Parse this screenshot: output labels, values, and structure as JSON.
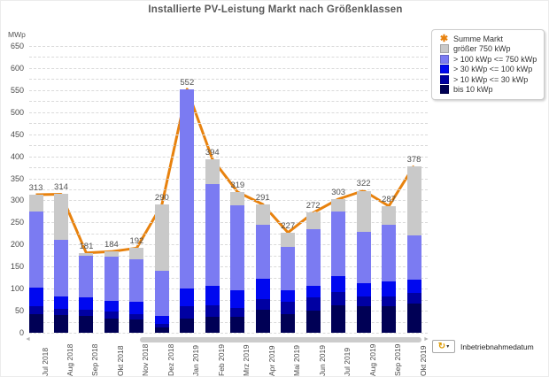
{
  "title": "Installierte PV-Leistung Markt nach Größenklassen",
  "y_axis_label": "MWp",
  "colors": {
    "line": "#e8820e",
    "grid": "#dadada",
    "title_text": "#595959",
    "tick_text": "#4a4a4a",
    "legend_star": "#e8820e",
    "refresh_icon": "#dd9900"
  },
  "legend": {
    "position": "top-right",
    "line_item": {
      "label": "Summe Markt",
      "icon": "orange-star"
    },
    "items": [
      {
        "label": "größer 750 kWp",
        "color": "#c9c9c9"
      },
      {
        "label": "> 100 kWp <= 750 kWp",
        "color": "#7b7bf2"
      },
      {
        "label": "> 30 kWp <= 100 kWp",
        "color": "#0008f0"
      },
      {
        "label": "> 10 kWp <= 30 kWp",
        "color": "#0000a2"
      },
      {
        "label": "bis 10 kWp",
        "color": "#000055"
      }
    ]
  },
  "footer": {
    "dimension_label": "Inbetriebnahmedatum"
  },
  "scrollbar": {
    "left_arrow": "◄",
    "right_arrow": "►"
  },
  "chart_data": {
    "type": "bar",
    "stacked": true,
    "title": "Installierte PV-Leistung Markt nach Größenklassen",
    "ylabel": "MWp",
    "ylim": [
      0,
      660
    ],
    "ytick_major": 50,
    "ytick_minor": 25,
    "grid": "dashed-horizontal",
    "categories": [
      "Jul 2018",
      "Aug 2018",
      "Sep 2018",
      "Okt 2018",
      "Nov 2018",
      "Dez 2018",
      "Jan 2019",
      "Feb 2019",
      "Mrz 2019",
      "Apr 2019",
      "Mai 2019",
      "Jun 2019",
      "Jul 2019",
      "Aug 2019",
      "Sep 2019",
      "Okt 2019"
    ],
    "series": [
      {
        "name": "bis 10 kWp",
        "color": "#000055",
        "values": [
          43,
          40,
          38,
          33,
          30,
          13,
          33,
          36,
          36,
          53,
          43,
          50,
          63,
          60,
          60,
          66
        ]
      },
      {
        "name": "> 10 kWp <= 30 kWp",
        "color": "#0000a2",
        "values": [
          17,
          14,
          15,
          15,
          13,
          8,
          28,
          27,
          20,
          23,
          27,
          30,
          30,
          22,
          23,
          24
        ]
      },
      {
        "name": "> 30 kWp <= 100 kWp",
        "color": "#0008f0",
        "values": [
          43,
          29,
          28,
          25,
          27,
          17,
          40,
          44,
          40,
          47,
          26,
          26,
          35,
          30,
          34,
          30
        ]
      },
      {
        "name": "> 100 kWp <= 750 kWp",
        "color": "#7b7bf2",
        "values": [
          171,
          127,
          94,
          99,
          97,
          102,
          451,
          231,
          193,
          121,
          98,
          128,
          146,
          116,
          127,
          100
        ]
      },
      {
        "name": "größer 750 kWp",
        "color": "#c9c9c9",
        "values": [
          39,
          104,
          6,
          12,
          25,
          150,
          0,
          56,
          30,
          47,
          33,
          38,
          29,
          94,
          43,
          158
        ]
      }
    ],
    "line_series": {
      "name": "Summe Markt",
      "color": "#e8820e",
      "values": [
        313,
        314,
        181,
        184,
        192,
        290,
        552,
        394,
        319,
        291,
        227,
        272,
        303,
        322,
        287,
        378
      ]
    },
    "bar_value_labels": [
      313,
      314,
      181,
      184,
      192,
      290,
      552,
      394,
      319,
      291,
      227,
      272,
      303,
      322,
      287,
      378
    ]
  }
}
